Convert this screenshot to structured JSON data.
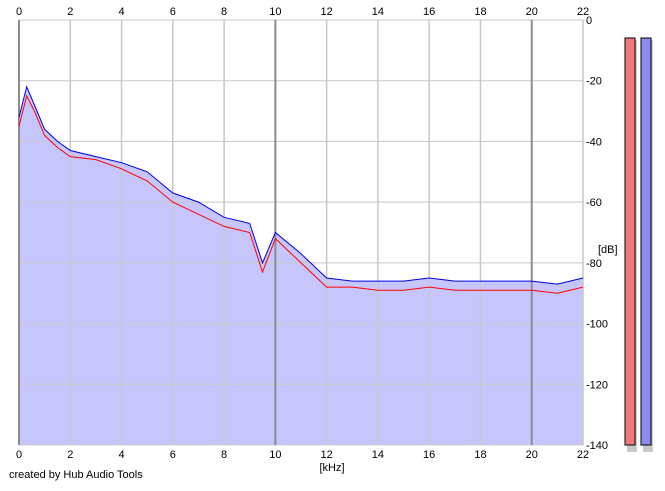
{
  "app": {
    "credit": "created by Hub Audio Tools"
  },
  "chart_data": {
    "type": "area",
    "xlabel": "[kHz]",
    "ylabel": "[dB]",
    "xlim": [
      0,
      22
    ],
    "ylim": [
      -140,
      0
    ],
    "x_ticks": [
      0,
      2,
      4,
      6,
      8,
      10,
      12,
      14,
      16,
      18,
      20,
      22
    ],
    "y_ticks": [
      0,
      -20,
      -40,
      -60,
      -80,
      -100,
      -120,
      -140
    ],
    "grid": true,
    "colors": {
      "background": "#ffffff",
      "area_fill": "#c6c6fc",
      "grid": "#c8c8c8",
      "major_grid": "#8c8c8c",
      "left": "#ff0000",
      "right": "#0000e6"
    },
    "series": [
      {
        "x": [
          0,
          0.3,
          0.6,
          1,
          1.5,
          2,
          3,
          4,
          5,
          6,
          7,
          8,
          9,
          9.5,
          10,
          11,
          12,
          13,
          14,
          15,
          16,
          17,
          18,
          19,
          20,
          21,
          22
        ],
        "values": [
          -35,
          -25,
          -30,
          -38,
          -42,
          -45,
          -46,
          -49,
          -53,
          -60,
          -64,
          -68,
          -70,
          -83,
          -72,
          -80,
          -88,
          -88,
          -89,
          -89,
          -88,
          -89,
          -89,
          -89,
          -89,
          -90,
          -88
        ],
        "color": "#ff0000"
      },
      {
        "x": [
          0,
          0.3,
          0.6,
          1,
          1.5,
          2,
          3,
          4,
          5,
          6,
          7,
          8,
          9,
          9.5,
          10,
          11,
          12,
          13,
          14,
          15,
          16,
          17,
          18,
          19,
          20,
          21,
          22
        ],
        "values": [
          -32,
          -22,
          -28,
          -36,
          -40,
          -43,
          -45,
          -47,
          -50,
          -57,
          -60,
          -65,
          -67,
          -80,
          -70,
          -77,
          -85,
          -86,
          -86,
          -86,
          -85,
          -86,
          -86,
          -86,
          -86,
          -87,
          -85
        ],
        "color": "#0000e6"
      }
    ],
    "level_meters": [
      {
        "channel": "left",
        "color": "#f07a7a"
      },
      {
        "channel": "right",
        "color": "#8c8cf0"
      }
    ]
  }
}
